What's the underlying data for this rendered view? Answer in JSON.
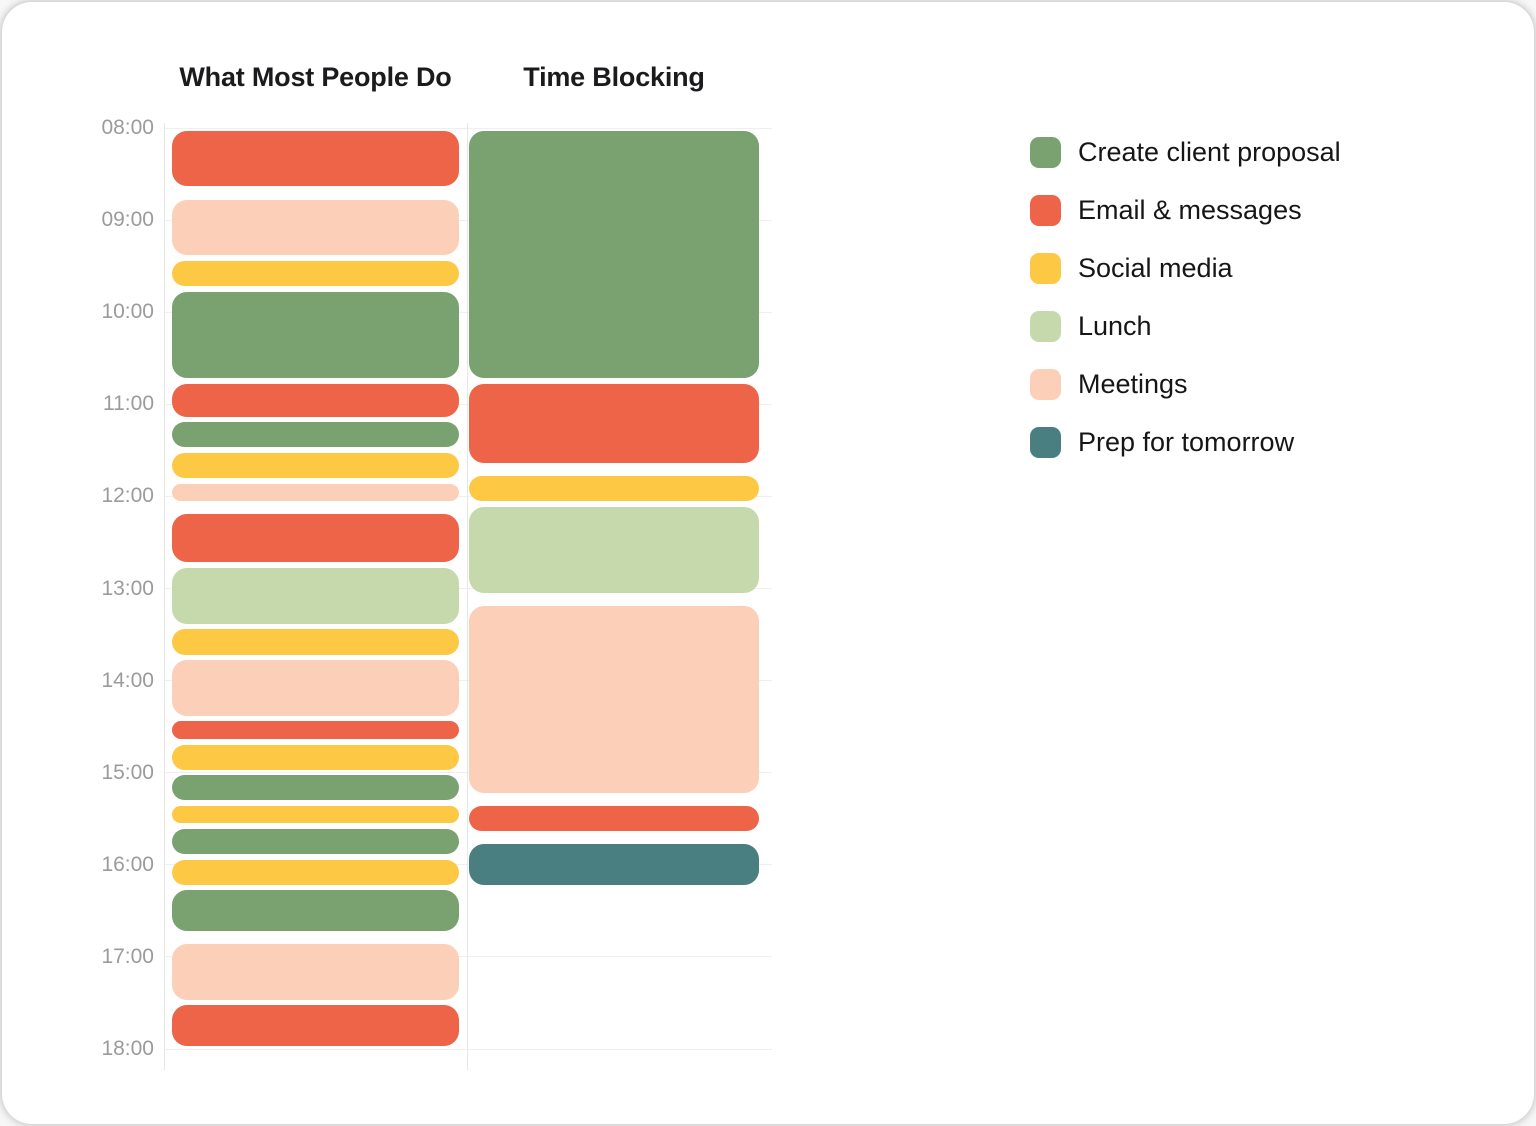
{
  "chart_data": {
    "type": "schedule-comparison",
    "title": "",
    "time_axis": {
      "start": "08:00",
      "end": "18:00",
      "tick_labels": [
        "08:00",
        "09:00",
        "10:00",
        "11:00",
        "12:00",
        "13:00",
        "14:00",
        "15:00",
        "16:00",
        "17:00",
        "18:00"
      ],
      "grid": "on"
    },
    "categories": {
      "proposal": {
        "label": "Create client proposal",
        "color": "#7aa170"
      },
      "email": {
        "label": "Email & messages",
        "color": "#ed6449"
      },
      "social": {
        "label": "Social media",
        "color": "#fdc843"
      },
      "lunch": {
        "label": "Lunch",
        "color": "#c6d9ac"
      },
      "meetings": {
        "label": "Meetings",
        "color": "#fcd0b8"
      },
      "prep": {
        "label": "Prep for tomorrow",
        "color": "#4a7f81"
      }
    },
    "legend": {
      "position": "right",
      "order": [
        "proposal",
        "email",
        "social",
        "lunch",
        "meetings",
        "prep"
      ]
    },
    "columns": [
      {
        "title": "What Most People Do",
        "blocks": [
          {
            "category": "email",
            "start": "08:00",
            "end": "08:40"
          },
          {
            "category": "meetings",
            "start": "08:45",
            "end": "09:25"
          },
          {
            "category": "social",
            "start": "09:25",
            "end": "09:45"
          },
          {
            "category": "proposal",
            "start": "09:45",
            "end": "10:45"
          },
          {
            "category": "email",
            "start": "10:45",
            "end": "11:10"
          },
          {
            "category": "proposal",
            "start": "11:10",
            "end": "11:30"
          },
          {
            "category": "social",
            "start": "11:30",
            "end": "11:50"
          },
          {
            "category": "meetings",
            "start": "11:50",
            "end": "12:05"
          },
          {
            "category": "email",
            "start": "12:10",
            "end": "12:45"
          },
          {
            "category": "lunch",
            "start": "12:45",
            "end": "13:25"
          },
          {
            "category": "social",
            "start": "13:25",
            "end": "13:45"
          },
          {
            "category": "meetings",
            "start": "13:45",
            "end": "14:25"
          },
          {
            "category": "email",
            "start": "14:25",
            "end": "14:40"
          },
          {
            "category": "social",
            "start": "14:40",
            "end": "15:00"
          },
          {
            "category": "proposal",
            "start": "15:00",
            "end": "15:20"
          },
          {
            "category": "social",
            "start": "15:20",
            "end": "15:35"
          },
          {
            "category": "proposal",
            "start": "15:35",
            "end": "15:55"
          },
          {
            "category": "social",
            "start": "15:55",
            "end": "16:15"
          },
          {
            "category": "proposal",
            "start": "16:15",
            "end": "16:45"
          },
          {
            "category": "meetings",
            "start": "16:50",
            "end": "17:30"
          },
          {
            "category": "email",
            "start": "17:30",
            "end": "18:00"
          }
        ]
      },
      {
        "title": "Time Blocking",
        "blocks": [
          {
            "category": "proposal",
            "start": "08:00",
            "end": "10:45"
          },
          {
            "category": "email",
            "start": "10:45",
            "end": "11:40"
          },
          {
            "category": "social",
            "start": "11:45",
            "end": "12:05"
          },
          {
            "category": "lunch",
            "start": "12:05",
            "end": "13:05"
          },
          {
            "category": "meetings",
            "start": "13:10",
            "end": "15:15"
          },
          {
            "category": "email",
            "start": "15:20",
            "end": "15:40"
          },
          {
            "category": "prep",
            "start": "15:45",
            "end": "16:15"
          }
        ]
      }
    ]
  }
}
